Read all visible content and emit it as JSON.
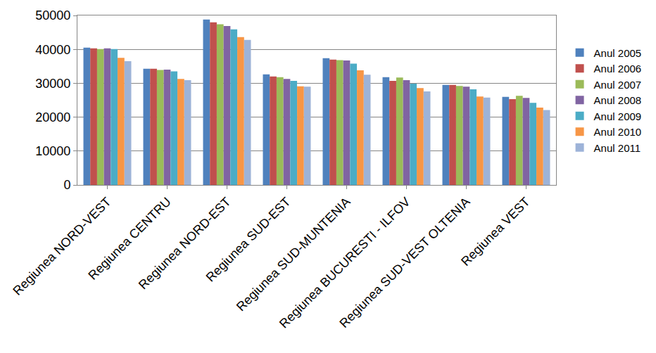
{
  "chart_data": {
    "type": "bar",
    "categories": [
      "Regiunea NORD-VEST",
      "Regiunea CENTRU",
      "Regiunea NORD-EST",
      "Regiunea SUD-EST",
      "Regiunea SUD-MUNTENIA",
      "Regiunea BUCURESTI - ILFOV",
      "Regiunea SUD-VEST OLTENIA",
      "Regiunea VEST"
    ],
    "series": [
      {
        "name": "Anul 2005",
        "color": "#4F81BD",
        "values": [
          40500,
          34300,
          48800,
          32600,
          37400,
          31800,
          29500,
          26000
        ]
      },
      {
        "name": "Anul 2006",
        "color": "#C0504D",
        "values": [
          40300,
          34300,
          48000,
          32000,
          37000,
          30700,
          29500,
          25300
        ]
      },
      {
        "name": "Anul 2007",
        "color": "#9BBB59",
        "values": [
          40100,
          33900,
          47400,
          31800,
          36800,
          31700,
          29200,
          26300
        ]
      },
      {
        "name": "Anul 2008",
        "color": "#8064A2",
        "values": [
          40300,
          34000,
          46900,
          31300,
          36700,
          30900,
          29000,
          25700
        ]
      },
      {
        "name": "Anul 2009",
        "color": "#4BACC6",
        "values": [
          40100,
          33500,
          45900,
          30700,
          35800,
          29900,
          28200,
          24200
        ]
      },
      {
        "name": "Anul 2010",
        "color": "#F79646",
        "values": [
          37500,
          31300,
          43600,
          29100,
          33800,
          28600,
          26100,
          22800
        ]
      },
      {
        "name": "Anul 2011",
        "color": "#9DB3D8",
        "values": [
          36500,
          30900,
          42800,
          29000,
          32500,
          27600,
          25800,
          22100
        ]
      }
    ],
    "ylim": [
      0,
      50000
    ],
    "yticks": [
      0,
      10000,
      20000,
      30000,
      40000,
      50000
    ],
    "grid": true,
    "legend": "right"
  }
}
